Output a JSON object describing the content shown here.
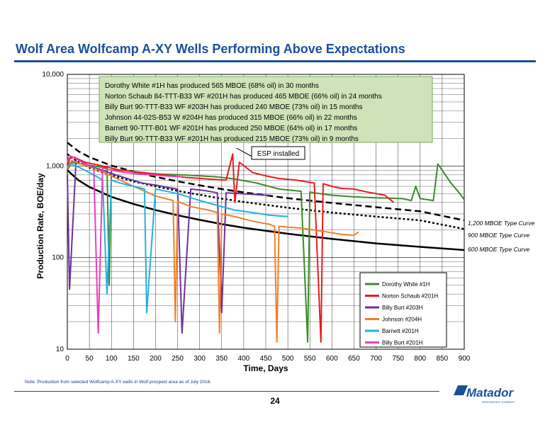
{
  "slide": {
    "title": "Wolf Area Wolfcamp A-XY Wells Performing Above Expectations",
    "note": "Note:  Production from selected Wolfcamp A-XY wells in Wolf prospect area as of July 2016.",
    "page_number": "24",
    "logo_text": "Matador",
    "logo_subtext": "RESOURCES COMPANY"
  },
  "colors": {
    "brand_blue": "#1a4f9c",
    "annotation_fill": "#cfe3b8",
    "annotation_border": "#7aa860"
  },
  "chart_data": {
    "type": "line",
    "xlabel": "Time, Days",
    "ylabel": "Production Rate, BOE/day",
    "y_scale": "log",
    "xlim": [
      0,
      900
    ],
    "ylim": [
      10,
      10000
    ],
    "x_ticks": [
      0,
      50,
      100,
      150,
      200,
      250,
      300,
      350,
      400,
      450,
      500,
      550,
      600,
      650,
      700,
      750,
      800,
      850,
      900
    ],
    "y_ticks": [
      10,
      100,
      1000,
      10000
    ],
    "y_tick_labels": [
      "10",
      "100",
      "1,000",
      "10,000"
    ],
    "grid": true,
    "legend_position": "bottom-right",
    "annotation_box": [
      "Dorothy White #1H has produced 565 MBOE (68% oil) in 30 months",
      "Norton Schaub 84-TTT-B33 WF #201H has produced 465 MBOE (66% oil) in 24 months",
      "Billy Burt 90-TTT-B33 WF #203H has produced 240 MBOE (73% oil) in 15 months",
      "Johnson 44-02S-B53 W #204H has produced 315 MBOE (66% oil) in 22 months",
      "Barnett 90-TTT-B01 WF #201H has produced 250 MBOE (64% oil) in 17 months",
      "Billy Burt 90-TTT-B33 WF #201H has produced 215 MBOE (73% oil) in 9 months"
    ],
    "callout": {
      "text": "ESP installed",
      "x": 383,
      "y": 1750
    },
    "type_curves": [
      {
        "name": "1,200 MBOE Type Curve",
        "style": "long-dash",
        "x": [
          0,
          25,
          50,
          100,
          150,
          200,
          250,
          300,
          350,
          400,
          500,
          600,
          700,
          800,
          900
        ],
        "y": [
          1800,
          1450,
          1250,
          1010,
          870,
          760,
          680,
          615,
          560,
          515,
          445,
          395,
          355,
          320,
          255
        ]
      },
      {
        "name": "900 MBOE Type Curve",
        "style": "dot",
        "x": [
          0,
          25,
          50,
          100,
          150,
          200,
          250,
          300,
          350,
          400,
          500,
          600,
          700,
          800,
          900
        ],
        "y": [
          1350,
          1100,
          960,
          790,
          680,
          600,
          535,
          485,
          440,
          405,
          350,
          310,
          280,
          255,
          205
        ]
      },
      {
        "name": "600 MBOE Type Curve",
        "style": "solid",
        "x": [
          0,
          25,
          50,
          100,
          150,
          200,
          250,
          300,
          350,
          400,
          500,
          600,
          700,
          800,
          900
        ],
        "y": [
          900,
          700,
          590,
          460,
          385,
          330,
          290,
          258,
          232,
          212,
          182,
          160,
          143,
          131,
          121
        ]
      }
    ],
    "series": [
      {
        "name": "Dorothy White #1H",
        "color": "#3a8a2c",
        "x": [
          0,
          10,
          30,
          60,
          90,
          95,
          100,
          130,
          160,
          200,
          260,
          300,
          340,
          380,
          430,
          480,
          530,
          545,
          550,
          560,
          600,
          650,
          700,
          760,
          780,
          790,
          800,
          830,
          840,
          850,
          870,
          890,
          900
        ],
        "y": [
          900,
          1100,
          1050,
          1000,
          950,
          50,
          900,
          900,
          850,
          820,
          800,
          780,
          760,
          720,
          650,
          560,
          530,
          12,
          520,
          510,
          480,
          460,
          450,
          440,
          420,
          600,
          440,
          420,
          1050,
          900,
          650,
          500,
          430
        ]
      },
      {
        "name": "Norton Schaub #201H",
        "color": "#e81c1c",
        "x": [
          0,
          5,
          15,
          40,
          80,
          120,
          170,
          220,
          270,
          320,
          360,
          375,
          380,
          390,
          420,
          450,
          480,
          520,
          560,
          575,
          580,
          590,
          600,
          620,
          650,
          680,
          700,
          720,
          740
        ],
        "y": [
          900,
          1200,
          1250,
          1100,
          1000,
          900,
          850,
          800,
          750,
          720,
          700,
          1350,
          400,
          1100,
          850,
          780,
          730,
          700,
          650,
          12,
          640,
          620,
          600,
          570,
          560,
          520,
          500,
          480,
          400
        ]
      },
      {
        "name": "Billy Burt #203H",
        "color": "#7030a0",
        "x": [
          0,
          5,
          20,
          50,
          80,
          110,
          140,
          170,
          200,
          230,
          250,
          260,
          280,
          310,
          340,
          350,
          360,
          390,
          420,
          450,
          460
        ],
        "y": [
          800,
          45,
          1200,
          1000,
          900,
          800,
          720,
          650,
          620,
          580,
          560,
          15,
          560,
          540,
          510,
          25,
          510,
          500,
          490,
          480,
          480
        ]
      },
      {
        "name": "Johnson #204H",
        "color": "#f07f2b",
        "x": [
          0,
          10,
          30,
          60,
          90,
          120,
          150,
          180,
          200,
          240,
          245,
          250,
          280,
          320,
          340,
          345,
          350,
          380,
          420,
          460,
          470,
          475,
          480,
          500,
          530,
          560,
          590,
          620,
          650,
          660
        ],
        "y": [
          950,
          1150,
          1050,
          950,
          820,
          700,
          600,
          520,
          470,
          420,
          20,
          410,
          360,
          330,
          310,
          15,
          300,
          280,
          250,
          230,
          220,
          12,
          220,
          215,
          210,
          200,
          190,
          180,
          175,
          190
        ]
      },
      {
        "name": "Barnett #201H",
        "color": "#22b1e0",
        "x": [
          0,
          10,
          30,
          60,
          80,
          90,
          100,
          120,
          150,
          175,
          180,
          200,
          250,
          300,
          350,
          380,
          400,
          420,
          440,
          460,
          500
        ],
        "y": [
          1000,
          1050,
          950,
          800,
          700,
          40,
          700,
          650,
          600,
          560,
          25,
          560,
          500,
          420,
          360,
          330,
          320,
          310,
          300,
          290,
          280
        ]
      },
      {
        "name": "Billy Burt #201H",
        "color": "#e83fb8",
        "x": [
          0,
          5,
          20,
          40,
          60,
          70,
          80,
          100,
          130,
          160,
          190,
          220,
          240,
          260
        ],
        "y": [
          1100,
          1300,
          1200,
          1050,
          950,
          15,
          950,
          900,
          850,
          820,
          800,
          780,
          770,
          760
        ]
      }
    ]
  }
}
